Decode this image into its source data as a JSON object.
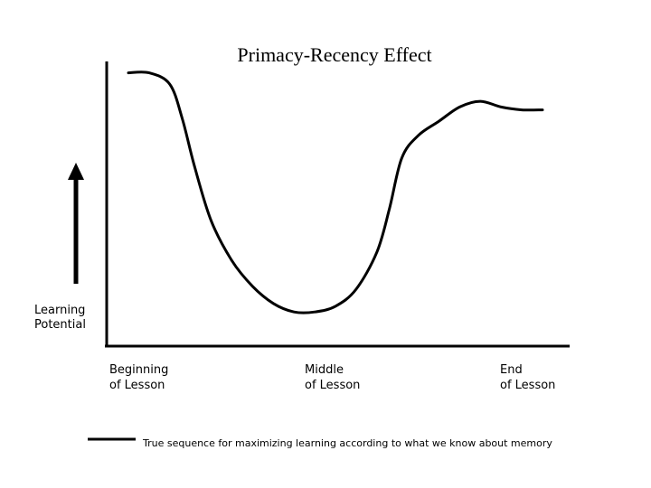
{
  "chart_data": {
    "type": "line",
    "title": "Primacy-Recency Effect",
    "ylabel_lines": [
      "Learning",
      "Potential"
    ],
    "xlabels": [
      [
        "Beginning",
        "of Lesson"
      ],
      [
        "Middle",
        "of Lesson"
      ],
      [
        "End",
        "of Lesson"
      ]
    ],
    "grid": false,
    "series": [
      {
        "name": "True sequence for maximizing learning according to what we know about memory",
        "x": [
          0,
          0.05,
          0.1,
          0.13,
          0.16,
          0.2,
          0.25,
          0.3,
          0.35,
          0.4,
          0.45,
          0.5,
          0.55,
          0.6,
          0.63,
          0.66,
          0.7,
          0.75,
          0.8,
          0.85,
          0.9,
          0.95,
          1.0
        ],
        "y": [
          0.96,
          0.96,
          0.92,
          0.8,
          0.63,
          0.44,
          0.3,
          0.21,
          0.15,
          0.12,
          0.12,
          0.14,
          0.2,
          0.33,
          0.48,
          0.66,
          0.74,
          0.79,
          0.84,
          0.86,
          0.84,
          0.83,
          0.83
        ]
      }
    ]
  }
}
